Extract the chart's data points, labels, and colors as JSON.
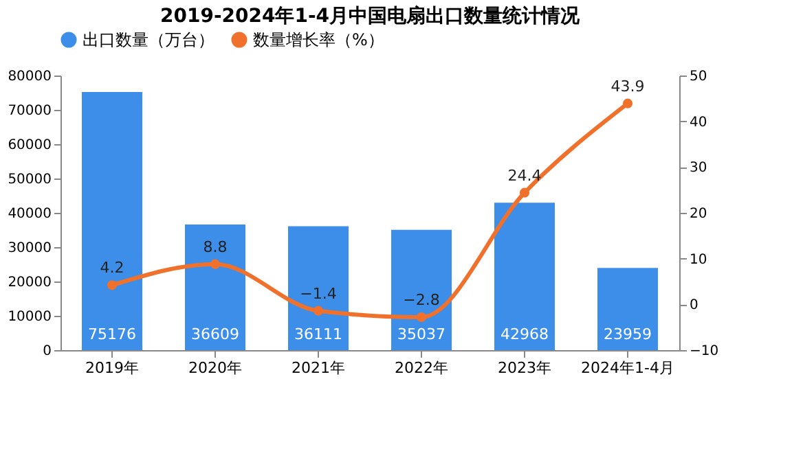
{
  "chart_data": {
    "type": "bar",
    "title": "2019-2024年1-4月中国电扇出口数量统计情况",
    "categories": [
      "2019年",
      "2020年",
      "2021年",
      "2022年",
      "2023年",
      "2024年1-4月"
    ],
    "series": [
      {
        "name": "出口数量（万台）",
        "color": "#3d8ee8",
        "values": [
          75176,
          36609,
          36111,
          35037,
          42968,
          23959
        ]
      },
      {
        "name": "数量增长率（%）",
        "type": "line",
        "axis": "y2",
        "color": "#f0712c",
        "values": [
          4.2,
          8.8,
          -1.4,
          -2.8,
          24.4,
          43.9
        ]
      }
    ],
    "ylim": [
      0,
      80000
    ],
    "yticks": [
      0,
      10000,
      20000,
      30000,
      40000,
      50000,
      60000,
      70000,
      80000
    ],
    "y2lim": [
      -10,
      50
    ],
    "y2ticks": [
      -10,
      0,
      10,
      20,
      30,
      40,
      50
    ],
    "data_labels": true,
    "legend": "top",
    "marker": "circle",
    "line_style": "solid",
    "grid": false
  }
}
